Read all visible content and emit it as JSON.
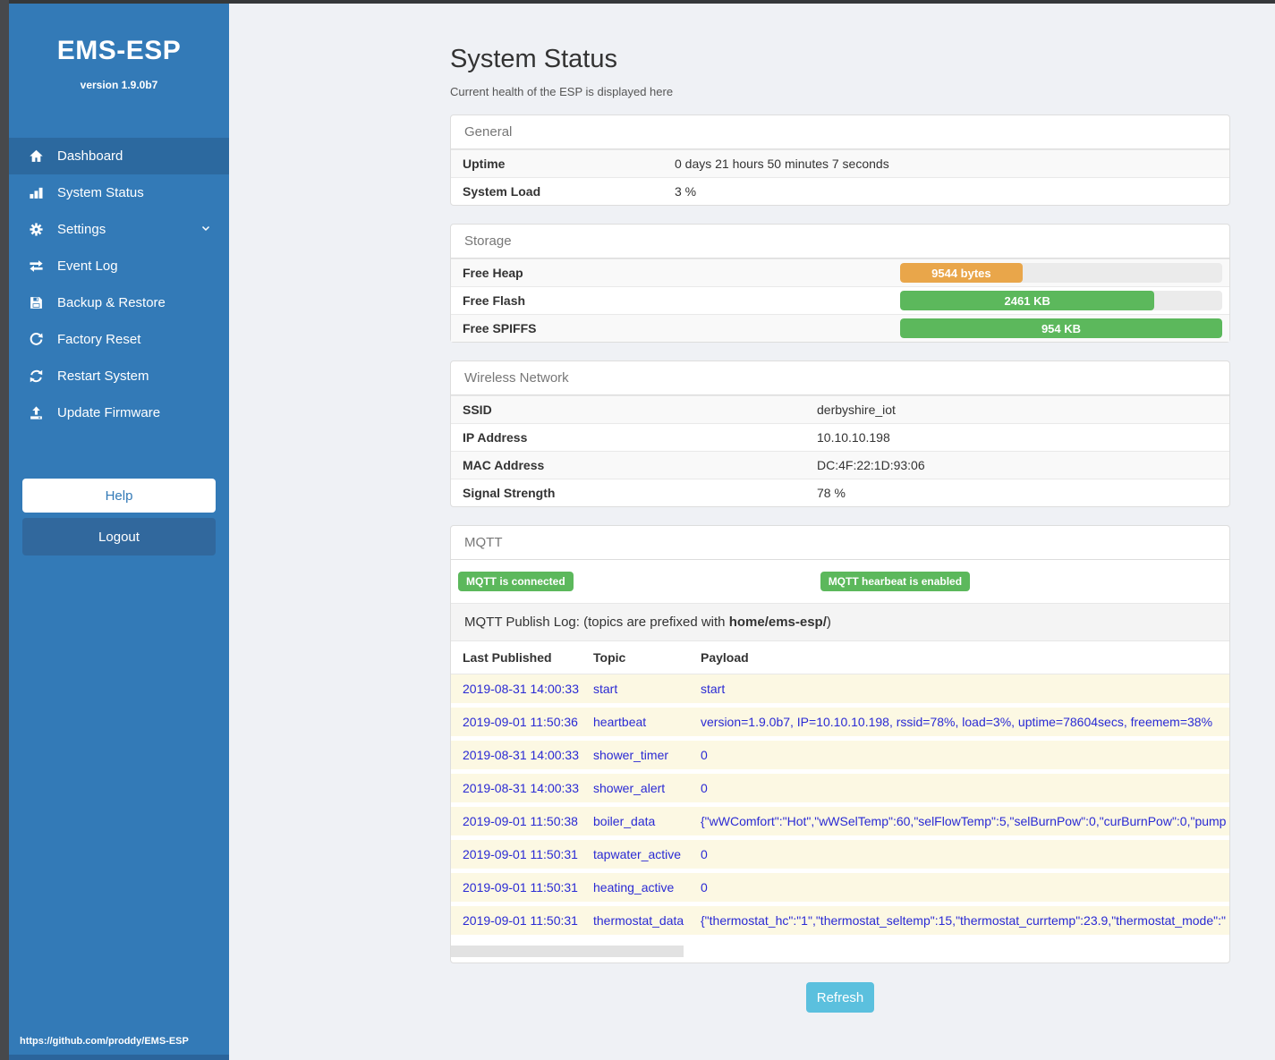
{
  "sidebar": {
    "title": "EMS-ESP",
    "version": "version 1.9.0b7",
    "items": [
      {
        "label": "Dashboard",
        "icon": "home-icon",
        "active": true
      },
      {
        "label": "System Status",
        "icon": "chart-blocks-icon",
        "active": false
      },
      {
        "label": "Settings",
        "icon": "gear-icon",
        "active": false,
        "has_submenu": true
      },
      {
        "label": "Event Log",
        "icon": "exchange-icon",
        "active": false
      },
      {
        "label": "Backup & Restore",
        "icon": "floppy-icon",
        "active": false
      },
      {
        "label": "Factory Reset",
        "icon": "redo-icon",
        "active": false
      },
      {
        "label": "Restart System",
        "icon": "sync-icon",
        "active": false
      },
      {
        "label": "Update Firmware",
        "icon": "upload-icon",
        "active": false
      }
    ],
    "help_label": "Help",
    "logout_label": "Logout",
    "footer_url": "https://github.com/proddy/EMS-ESP"
  },
  "main": {
    "title": "System Status",
    "subtitle": "Current health of the ESP is displayed here",
    "general": {
      "header": "General",
      "rows": [
        {
          "label": "Uptime",
          "value": "0 days 21 hours 50 minutes 7 seconds"
        },
        {
          "label": "System Load",
          "value": "3 %"
        }
      ]
    },
    "storage": {
      "header": "Storage",
      "rows": [
        {
          "label": "Free Heap",
          "bar_text": "9544 bytes",
          "percent": 38,
          "color": "#e9a64a"
        },
        {
          "label": "Free Flash",
          "bar_text": "2461 KB",
          "percent": 79,
          "color": "#5cb85c"
        },
        {
          "label": "Free SPIFFS",
          "bar_text": "954 KB",
          "percent": 100,
          "color": "#5cb85c"
        }
      ]
    },
    "wireless": {
      "header": "Wireless Network",
      "rows": [
        {
          "label": "SSID",
          "value": "derbyshire_iot"
        },
        {
          "label": "IP Address",
          "value": "10.10.10.198"
        },
        {
          "label": "MAC Address",
          "value": "DC:4F:22:1D:93:06"
        },
        {
          "label": "Signal Strength",
          "value": "78 %"
        }
      ]
    },
    "mqtt": {
      "header": "MQTT",
      "badges": [
        "MQTT is connected",
        "MQTT hearbeat is enabled"
      ],
      "publish_log_prefix": "MQTT Publish Log: (topics are prefixed with ",
      "publish_log_topic": "home/ems-esp/",
      "publish_log_suffix": ")",
      "columns": [
        "Last Published",
        "Topic",
        "Payload"
      ],
      "rows": [
        {
          "time": "2019-08-31 14:00:33",
          "topic": "start",
          "payload": "start"
        },
        {
          "time": "2019-09-01 11:50:36",
          "topic": "heartbeat",
          "payload": "version=1.9.0b7, IP=10.10.10.198, rssid=78%, load=3%, uptime=78604secs, freemem=38%"
        },
        {
          "time": "2019-08-31 14:00:33",
          "topic": "shower_timer",
          "payload": "0"
        },
        {
          "time": "2019-08-31 14:00:33",
          "topic": "shower_alert",
          "payload": "0"
        },
        {
          "time": "2019-09-01 11:50:38",
          "topic": "boiler_data",
          "payload": "{\"wWComfort\":\"Hot\",\"wWSelTemp\":60,\"selFlowTemp\":5,\"selBurnPow\":0,\"curBurnPow\":0,\"pump"
        },
        {
          "time": "2019-09-01 11:50:31",
          "topic": "tapwater_active",
          "payload": "0"
        },
        {
          "time": "2019-09-01 11:50:31",
          "topic": "heating_active",
          "payload": "0"
        },
        {
          "time": "2019-09-01 11:50:31",
          "topic": "thermostat_data",
          "payload": "{\"thermostat_hc\":\"1\",\"thermostat_seltemp\":15,\"thermostat_currtemp\":23.9,\"thermostat_mode\":\""
        }
      ]
    },
    "refresh_label": "Refresh"
  },
  "colors": {
    "sidebar": "#337ab7",
    "sidebar_active": "#2c699f",
    "badge_green": "#5cb85c",
    "bar_orange": "#e9a64a",
    "bar_green": "#5cb85c",
    "refresh_blue": "#5bc0de",
    "log_row_bg": "#fcf8e3",
    "log_text_blue": "#2a2ad4"
  }
}
